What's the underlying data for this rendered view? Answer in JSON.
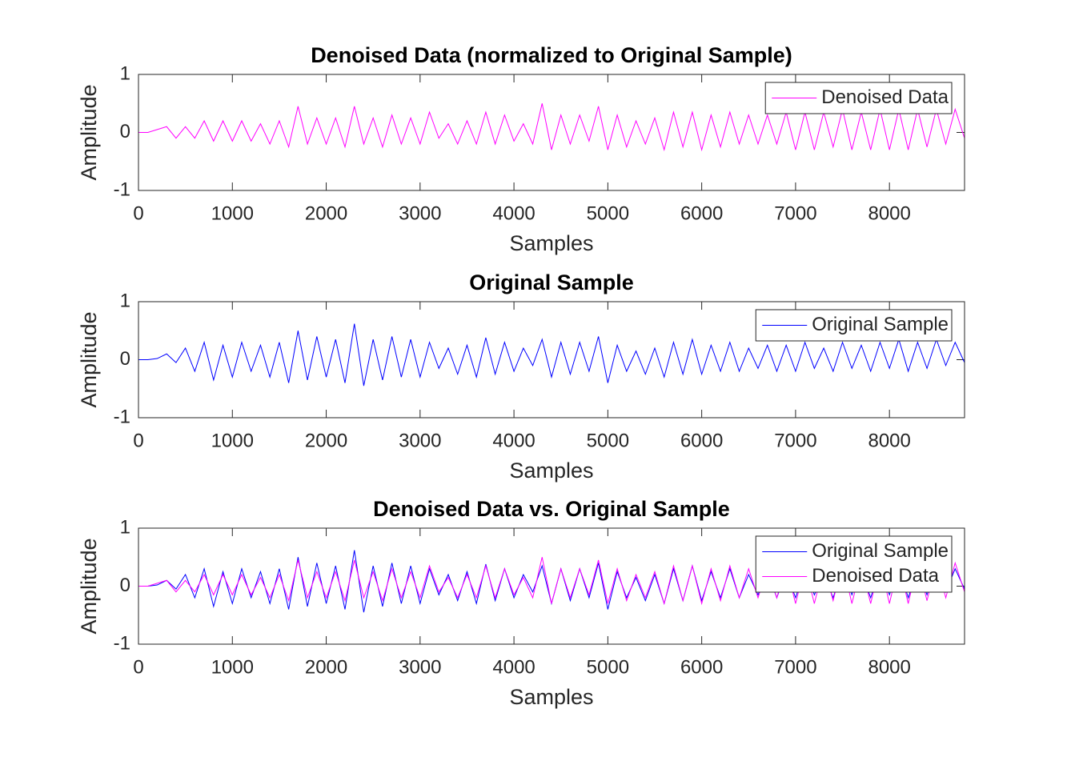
{
  "chart_data": [
    {
      "type": "line",
      "title": "Denoised Data (normalized to Original Sample)",
      "xlabel": "Samples",
      "ylabel": "Amplitude",
      "x": [
        0,
        100,
        200,
        300,
        400,
        500,
        600,
        700,
        800,
        900,
        1000,
        1100,
        1200,
        1300,
        1400,
        1500,
        1600,
        1700,
        1800,
        1900,
        2000,
        2100,
        2200,
        2300,
        2400,
        2500,
        2600,
        2700,
        2800,
        2900,
        3000,
        3100,
        3200,
        3300,
        3400,
        3500,
        3600,
        3700,
        3800,
        3900,
        4000,
        4100,
        4200,
        4300,
        4400,
        4500,
        4600,
        4700,
        4800,
        4900,
        5000,
        5100,
        5200,
        5300,
        5400,
        5500,
        5600,
        5700,
        5800,
        5900,
        6000,
        6100,
        6200,
        6300,
        6400,
        6500,
        6600,
        6700,
        6800,
        6900,
        7000,
        7100,
        7200,
        7300,
        7400,
        7500,
        7600,
        7700,
        7800,
        7900,
        8000,
        8100,
        8200,
        8300,
        8400,
        8500,
        8600,
        8700,
        8800
      ],
      "series": [
        {
          "name": "Denoised Data",
          "color": "#ff00ff",
          "values": [
            0,
            0,
            0.05,
            0.1,
            -0.1,
            0.1,
            -0.1,
            0.2,
            -0.15,
            0.2,
            -0.15,
            0.2,
            -0.15,
            0.15,
            -0.2,
            0.2,
            -0.25,
            0.45,
            -0.2,
            0.25,
            -0.2,
            0.25,
            -0.25,
            0.45,
            -0.2,
            0.25,
            -0.25,
            0.3,
            -0.2,
            0.25,
            -0.2,
            0.35,
            -0.1,
            0.15,
            -0.2,
            0.2,
            -0.2,
            0.35,
            -0.2,
            0.3,
            -0.15,
            0.15,
            -0.2,
            0.5,
            -0.3,
            0.3,
            -0.2,
            0.3,
            -0.15,
            0.45,
            -0.3,
            0.3,
            -0.25,
            0.2,
            -0.2,
            0.25,
            -0.3,
            0.35,
            -0.25,
            0.35,
            -0.3,
            0.3,
            -0.25,
            0.35,
            -0.2,
            0.3,
            -0.2,
            0.3,
            -0.2,
            0.35,
            -0.3,
            0.35,
            -0.3,
            0.35,
            -0.25,
            0.4,
            -0.3,
            0.35,
            -0.3,
            0.4,
            -0.3,
            0.4,
            -0.3,
            0.4,
            -0.25,
            0.4,
            -0.2,
            0.4,
            -0.1
          ]
        }
      ],
      "xlim": [
        0,
        8800
      ],
      "ylim": [
        -1,
        1
      ],
      "xticks": [
        0,
        1000,
        2000,
        3000,
        4000,
        5000,
        6000,
        7000,
        8000
      ],
      "yticks": [
        -1,
        0,
        1
      ],
      "grid": false,
      "legend": "upper right"
    },
    {
      "type": "line",
      "title": "Original Sample",
      "xlabel": "Samples",
      "ylabel": "Amplitude",
      "x": [
        0,
        100,
        200,
        300,
        400,
        500,
        600,
        700,
        800,
        900,
        1000,
        1100,
        1200,
        1300,
        1400,
        1500,
        1600,
        1700,
        1800,
        1900,
        2000,
        2100,
        2200,
        2300,
        2400,
        2500,
        2600,
        2700,
        2800,
        2900,
        3000,
        3100,
        3200,
        3300,
        3400,
        3500,
        3600,
        3700,
        3800,
        3900,
        4000,
        4100,
        4200,
        4300,
        4400,
        4500,
        4600,
        4700,
        4800,
        4900,
        5000,
        5100,
        5200,
        5300,
        5400,
        5500,
        5600,
        5700,
        5800,
        5900,
        6000,
        6100,
        6200,
        6300,
        6400,
        6500,
        6600,
        6700,
        6800,
        6900,
        7000,
        7100,
        7200,
        7300,
        7400,
        7500,
        7600,
        7700,
        7800,
        7900,
        8000,
        8100,
        8200,
        8300,
        8400,
        8500,
        8600,
        8700,
        8800
      ],
      "series": [
        {
          "name": "Original Sample",
          "color": "#0000ff",
          "values": [
            0,
            0,
            0.02,
            0.1,
            -0.05,
            0.2,
            -0.2,
            0.3,
            -0.35,
            0.25,
            -0.3,
            0.3,
            -0.2,
            0.25,
            -0.3,
            0.3,
            -0.4,
            0.5,
            -0.35,
            0.4,
            -0.3,
            0.35,
            -0.4,
            0.62,
            -0.45,
            0.35,
            -0.35,
            0.4,
            -0.3,
            0.35,
            -0.3,
            0.3,
            -0.15,
            0.2,
            -0.25,
            0.25,
            -0.3,
            0.38,
            -0.25,
            0.3,
            -0.2,
            0.2,
            -0.1,
            0.35,
            -0.3,
            0.3,
            -0.25,
            0.3,
            -0.2,
            0.4,
            -0.4,
            0.25,
            -0.2,
            0.15,
            -0.25,
            0.2,
            -0.3,
            0.3,
            -0.25,
            0.35,
            -0.25,
            0.25,
            -0.2,
            0.3,
            -0.2,
            0.2,
            -0.15,
            0.25,
            -0.2,
            0.25,
            -0.2,
            0.3,
            -0.15,
            0.2,
            -0.2,
            0.3,
            -0.15,
            0.25,
            -0.2,
            0.3,
            -0.15,
            0.35,
            -0.2,
            0.3,
            -0.15,
            0.35,
            -0.1,
            0.3,
            -0.05
          ]
        }
      ],
      "xlim": [
        0,
        8800
      ],
      "ylim": [
        -1,
        1
      ],
      "xticks": [
        0,
        1000,
        2000,
        3000,
        4000,
        5000,
        6000,
        7000,
        8000
      ],
      "yticks": [
        -1,
        0,
        1
      ],
      "grid": false,
      "legend": "upper right"
    },
    {
      "type": "line",
      "title": "Denoised Data vs. Original Sample",
      "xlabel": "Samples",
      "ylabel": "Amplitude",
      "x": [
        0,
        100,
        200,
        300,
        400,
        500,
        600,
        700,
        800,
        900,
        1000,
        1100,
        1200,
        1300,
        1400,
        1500,
        1600,
        1700,
        1800,
        1900,
        2000,
        2100,
        2200,
        2300,
        2400,
        2500,
        2600,
        2700,
        2800,
        2900,
        3000,
        3100,
        3200,
        3300,
        3400,
        3500,
        3600,
        3700,
        3800,
        3900,
        4000,
        4100,
        4200,
        4300,
        4400,
        4500,
        4600,
        4700,
        4800,
        4900,
        5000,
        5100,
        5200,
        5300,
        5400,
        5500,
        5600,
        5700,
        5800,
        5900,
        6000,
        6100,
        6200,
        6300,
        6400,
        6500,
        6600,
        6700,
        6800,
        6900,
        7000,
        7100,
        7200,
        7300,
        7400,
        7500,
        7600,
        7700,
        7800,
        7900,
        8000,
        8100,
        8200,
        8300,
        8400,
        8500,
        8600,
        8700,
        8800
      ],
      "series": [
        {
          "name": "Original Sample",
          "color": "#0000ff",
          "values": [
            0,
            0,
            0.02,
            0.1,
            -0.05,
            0.2,
            -0.2,
            0.3,
            -0.35,
            0.25,
            -0.3,
            0.3,
            -0.2,
            0.25,
            -0.3,
            0.3,
            -0.4,
            0.5,
            -0.35,
            0.4,
            -0.3,
            0.35,
            -0.4,
            0.62,
            -0.45,
            0.35,
            -0.35,
            0.4,
            -0.3,
            0.35,
            -0.3,
            0.3,
            -0.15,
            0.2,
            -0.25,
            0.25,
            -0.3,
            0.38,
            -0.25,
            0.3,
            -0.2,
            0.2,
            -0.1,
            0.35,
            -0.3,
            0.3,
            -0.25,
            0.3,
            -0.2,
            0.4,
            -0.4,
            0.25,
            -0.2,
            0.15,
            -0.25,
            0.2,
            -0.3,
            0.3,
            -0.25,
            0.35,
            -0.25,
            0.25,
            -0.2,
            0.3,
            -0.2,
            0.2,
            -0.15,
            0.25,
            -0.2,
            0.25,
            -0.2,
            0.3,
            -0.15,
            0.2,
            -0.2,
            0.3,
            -0.15,
            0.25,
            -0.2,
            0.3,
            -0.15,
            0.35,
            -0.2,
            0.3,
            -0.15,
            0.35,
            -0.1,
            0.3,
            -0.05
          ]
        },
        {
          "name": "Denoised Data",
          "color": "#ff00ff",
          "values": [
            0,
            0,
            0.05,
            0.1,
            -0.1,
            0.1,
            -0.1,
            0.2,
            -0.15,
            0.2,
            -0.15,
            0.2,
            -0.15,
            0.15,
            -0.2,
            0.2,
            -0.25,
            0.45,
            -0.2,
            0.25,
            -0.2,
            0.25,
            -0.25,
            0.45,
            -0.2,
            0.25,
            -0.25,
            0.3,
            -0.2,
            0.25,
            -0.2,
            0.35,
            -0.1,
            0.15,
            -0.2,
            0.2,
            -0.2,
            0.35,
            -0.2,
            0.3,
            -0.15,
            0.15,
            -0.2,
            0.5,
            -0.3,
            0.3,
            -0.2,
            0.3,
            -0.15,
            0.45,
            -0.3,
            0.3,
            -0.25,
            0.2,
            -0.2,
            0.25,
            -0.3,
            0.35,
            -0.25,
            0.35,
            -0.3,
            0.3,
            -0.25,
            0.35,
            -0.2,
            0.3,
            -0.2,
            0.3,
            -0.2,
            0.35,
            -0.3,
            0.35,
            -0.3,
            0.35,
            -0.25,
            0.4,
            -0.3,
            0.35,
            -0.3,
            0.4,
            -0.3,
            0.4,
            -0.3,
            0.4,
            -0.25,
            0.4,
            -0.2,
            0.4,
            -0.1
          ]
        }
      ],
      "xlim": [
        0,
        8800
      ],
      "ylim": [
        -1,
        1
      ],
      "xticks": [
        0,
        1000,
        2000,
        3000,
        4000,
        5000,
        6000,
        7000,
        8000
      ],
      "yticks": [
        -1,
        0,
        1
      ],
      "grid": false,
      "legend": "upper right"
    }
  ]
}
